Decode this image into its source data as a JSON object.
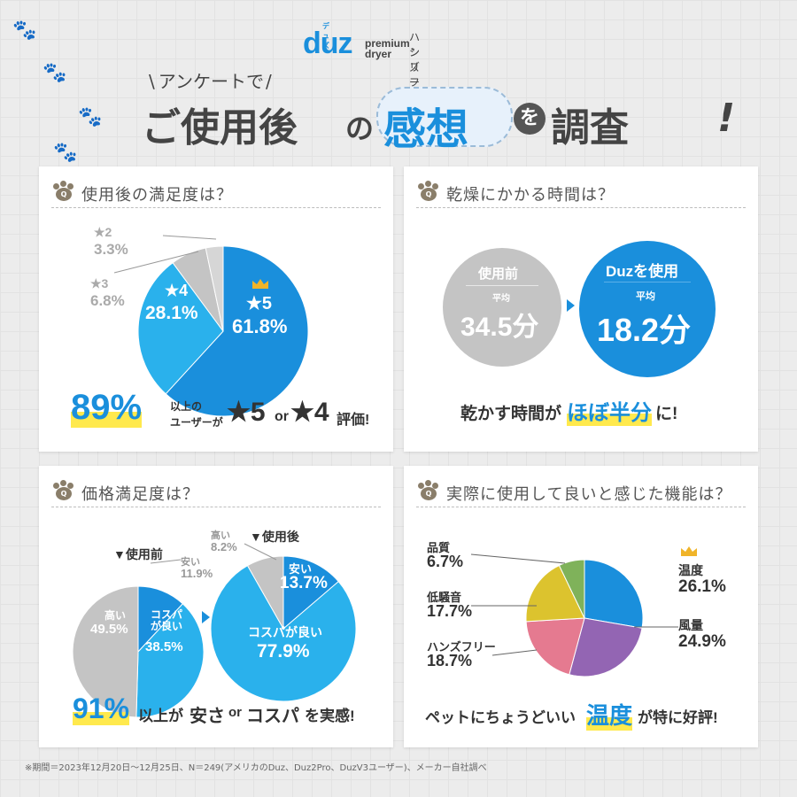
{
  "header": {
    "brand_logo": "duz",
    "brand_kana": "デュズ",
    "brand_sub1": "premium",
    "brand_sub2": "dryer",
    "series_line1": "ハンズフリー",
    "series_line2": "シリーズ",
    "survey_tag": "アンケートで",
    "headline_part1": "ご使用後",
    "headline_no": "の",
    "headline_focus": "感想",
    "headline_wo": "を",
    "headline_part2": "調査",
    "headline_end": "!"
  },
  "colors": {
    "blue": "#1a8fdc",
    "light_blue": "#2ab1ec",
    "gray": "#c4c4c4",
    "highlight_yellow": "#ffe94d",
    "badge_brown": "#8a7e6a"
  },
  "cards": {
    "satisfaction": {
      "title": "使用後の満足度は？",
      "label_5_name": "★5",
      "label_5_value": "61.8%",
      "label_4_name": "★4",
      "label_4_value": "28.1%",
      "label_3_name": "★3",
      "label_3_value": "6.8%",
      "label_2_name": "★2",
      "label_2_value": "3.3%",
      "summary_pct": "89%",
      "summary_line1": "以上の",
      "summary_line2": "ユーザーが",
      "summary_star5": "★5",
      "summary_or": "or",
      "summary_star4": "★4",
      "summary_end": "評価!"
    },
    "drying_time": {
      "title": "乾燥にかかる時間は？",
      "before_label": "使用前",
      "before_avg": "平均",
      "before_value": "34.5分",
      "after_label": "Duzを使用",
      "after_avg": "平均",
      "after_value": "18.2分",
      "summary_a": "乾かす時間が",
      "summary_b": "ほぼ半分",
      "summary_c": "に!"
    },
    "price": {
      "title": "価格満足度は？",
      "before_heading": "▼使用前",
      "after_heading": "▼使用後",
      "b_cheap_name": "安い",
      "b_cheap_value": "11.9%",
      "b_cospa_name": "コスパが良い",
      "b_cospa_value": "38.5%",
      "b_high_name": "高い",
      "b_high_value": "49.5%",
      "a_cheap_name": "安い",
      "a_cheap_value": "13.7%",
      "a_cospa_name": "コスパが良い",
      "a_cospa_value": "77.9%",
      "a_high_name": "高い",
      "a_high_value": "8.2%",
      "summary_pct": "91%",
      "summary_a": "以上が",
      "summary_b": "安さ",
      "summary_or": "or",
      "summary_c": "コスパ",
      "summary_d": "を実感!"
    },
    "features": {
      "title": "実際に使用して良いと感じた機能は？",
      "temp_name": "温度",
      "temp_value": "26.1%",
      "wind_name": "風量",
      "wind_value": "24.9%",
      "hands_name": "ハンズフリー",
      "hands_value": "18.7%",
      "noise_name": "低騒音",
      "noise_value": "17.7%",
      "quality_name": "品質",
      "quality_value": "6.7%",
      "summary_a": "ペットにちょうどいい",
      "summary_b": "温度",
      "summary_c": "が特に好評!"
    }
  },
  "footnote": "※期間＝2023年12月20日〜12月25日、N＝249(アメリカのDuz、Duz2Pro、DuzV3ユーザー)、メーカー自社調べ",
  "chart_data": [
    {
      "type": "pie",
      "title": "使用後の満足度は？",
      "categories": [
        "★5",
        "★4",
        "★3",
        "★2"
      ],
      "values": [
        61.8,
        28.1,
        6.8,
        3.3
      ],
      "unit": "%"
    },
    {
      "type": "bar",
      "title": "乾燥にかかる時間は？",
      "categories": [
        "使用前",
        "Duzを使用"
      ],
      "values": [
        34.5,
        18.2
      ],
      "unit": "分"
    },
    {
      "type": "pie",
      "title": "▼使用前",
      "categories": [
        "安い",
        "コスパが良い",
        "高い"
      ],
      "values": [
        11.9,
        38.5,
        49.5
      ],
      "unit": "%"
    },
    {
      "type": "pie",
      "title": "▼使用後",
      "categories": [
        "安い",
        "コスパが良い",
        "高い"
      ],
      "values": [
        13.7,
        77.9,
        8.2
      ],
      "unit": "%"
    },
    {
      "type": "pie",
      "title": "実際に使用して良いと感じた機能は？",
      "categories": [
        "温度",
        "風量",
        "ハンズフリー",
        "低騒音",
        "品質"
      ],
      "values": [
        26.1,
        24.9,
        18.7,
        17.7,
        6.7
      ],
      "unit": "%"
    }
  ]
}
